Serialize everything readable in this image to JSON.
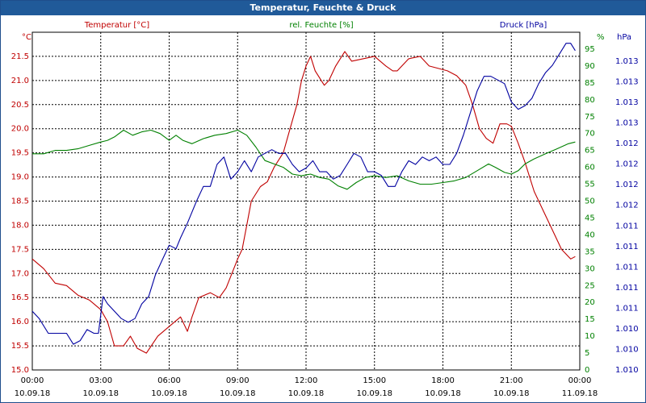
{
  "window": {
    "title": "Temperatur, Feuchte & Druck"
  },
  "chart_data": {
    "type": "line",
    "title": "Temperatur, Feuchte & Druck",
    "x_ticks": [
      {
        "time": "00:00",
        "date": "10.09.18"
      },
      {
        "time": "03:00",
        "date": "10.09.18"
      },
      {
        "time": "06:00",
        "date": "10.09.18"
      },
      {
        "time": "09:00",
        "date": "10.09.18"
      },
      {
        "time": "12:00",
        "date": "10.09.18"
      },
      {
        "time": "15:00",
        "date": "10.09.18"
      },
      {
        "time": "18:00",
        "date": "10.09.18"
      },
      {
        "time": "21:00",
        "date": "10.09.18"
      },
      {
        "time": "00:00",
        "date": "11.09.18"
      }
    ],
    "xlim": [
      0,
      24
    ],
    "axes": {
      "left": {
        "unit": "°C",
        "ylim": [
          15.0,
          22.0
        ],
        "ticks": [
          "15.0",
          "15.5",
          "16.0",
          "16.5",
          "17.0",
          "17.5",
          "18.0",
          "18.5",
          "19.0",
          "19.5",
          "20.0",
          "20.5",
          "21.0",
          "21.5"
        ]
      },
      "right1": {
        "unit": "%",
        "ylim": [
          0,
          100
        ],
        "ticks": [
          "0",
          "5",
          "10",
          "15",
          "20",
          "25",
          "30",
          "35",
          "40",
          "45",
          "50",
          "55",
          "60",
          "65",
          "70",
          "75",
          "80",
          "85",
          "90",
          "95"
        ]
      },
      "right2": {
        "unit": "hPa",
        "ylim": [
          1009.3,
          1013.9
        ],
        "ticks": [
          "1.010",
          "1.010",
          "1.010",
          "1.011",
          "1.011",
          "1.011",
          "1.011",
          "1.011",
          "1.012",
          "1.012",
          "1.012",
          "1.012",
          "1.013",
          "1.013",
          "1.013",
          "1.013"
        ]
      }
    },
    "legend": [
      "Temperatur [°C]",
      "rel. Feuchte [%]",
      "Druck [hPa]"
    ],
    "series": [
      {
        "name": "Temperatur [°C]",
        "axis": "left",
        "color": "#c00000",
        "points": [
          [
            0,
            17.3
          ],
          [
            0.5,
            17.1
          ],
          [
            1,
            16.8
          ],
          [
            1.5,
            16.75
          ],
          [
            2,
            16.55
          ],
          [
            2.5,
            16.45
          ],
          [
            3,
            16.25
          ],
          [
            3.3,
            16.0
          ],
          [
            3.6,
            15.5
          ],
          [
            4,
            15.5
          ],
          [
            4.3,
            15.7
          ],
          [
            4.6,
            15.45
          ],
          [
            5,
            15.35
          ],
          [
            5.5,
            15.7
          ],
          [
            6,
            15.9
          ],
          [
            6.5,
            16.1
          ],
          [
            6.8,
            15.8
          ],
          [
            7,
            16.1
          ],
          [
            7.3,
            16.5
          ],
          [
            7.8,
            16.6
          ],
          [
            8.2,
            16.5
          ],
          [
            8.5,
            16.7
          ],
          [
            9,
            17.3
          ],
          [
            9.2,
            17.5
          ],
          [
            9.4,
            18.0
          ],
          [
            9.6,
            18.5
          ],
          [
            10,
            18.8
          ],
          [
            10.3,
            18.9
          ],
          [
            10.6,
            19.2
          ],
          [
            11,
            19.5
          ],
          [
            11.3,
            20.0
          ],
          [
            11.6,
            20.5
          ],
          [
            11.8,
            21.0
          ],
          [
            12,
            21.3
          ],
          [
            12.2,
            21.5
          ],
          [
            12.4,
            21.2
          ],
          [
            12.8,
            20.9
          ],
          [
            13,
            21.0
          ],
          [
            13.3,
            21.3
          ],
          [
            13.7,
            21.6
          ],
          [
            14,
            21.4
          ],
          [
            14.5,
            21.45
          ],
          [
            15,
            21.5
          ],
          [
            15.5,
            21.3
          ],
          [
            15.8,
            21.2
          ],
          [
            16,
            21.2
          ],
          [
            16.5,
            21.45
          ],
          [
            17,
            21.5
          ],
          [
            17.4,
            21.3
          ],
          [
            17.8,
            21.25
          ],
          [
            18.2,
            21.2
          ],
          [
            18.6,
            21.1
          ],
          [
            19,
            20.9
          ],
          [
            19.3,
            20.5
          ],
          [
            19.6,
            20.0
          ],
          [
            19.9,
            19.8
          ],
          [
            20.2,
            19.7
          ],
          [
            20.5,
            20.1
          ],
          [
            20.8,
            20.1
          ],
          [
            21,
            20.05
          ],
          [
            21.3,
            19.7
          ],
          [
            21.6,
            19.3
          ],
          [
            22,
            18.7
          ],
          [
            22.4,
            18.3
          ],
          [
            22.8,
            17.9
          ],
          [
            23.2,
            17.5
          ],
          [
            23.6,
            17.3
          ],
          [
            23.8,
            17.35
          ]
        ]
      },
      {
        "name": "rel. Feuchte [%]",
        "axis": "right1",
        "color": "#008000",
        "points": [
          [
            0,
            64
          ],
          [
            0.5,
            64
          ],
          [
            1,
            65
          ],
          [
            1.5,
            65
          ],
          [
            2,
            65.5
          ],
          [
            2.5,
            66.5
          ],
          [
            3,
            67.5
          ],
          [
            3.3,
            68
          ],
          [
            3.6,
            69
          ],
          [
            4,
            71
          ],
          [
            4.4,
            69.5
          ],
          [
            4.8,
            70.5
          ],
          [
            5.2,
            71
          ],
          [
            5.6,
            70
          ],
          [
            6,
            68
          ],
          [
            6.3,
            69.5
          ],
          [
            6.6,
            68
          ],
          [
            7,
            67
          ],
          [
            7.5,
            68.5
          ],
          [
            8,
            69.5
          ],
          [
            8.5,
            70
          ],
          [
            9,
            71
          ],
          [
            9.4,
            69.5
          ],
          [
            9.8,
            66
          ],
          [
            10.2,
            62
          ],
          [
            10.6,
            61
          ],
          [
            11,
            60
          ],
          [
            11.4,
            58
          ],
          [
            11.8,
            57.5
          ],
          [
            12.2,
            58
          ],
          [
            12.6,
            57
          ],
          [
            13,
            56.5
          ],
          [
            13.4,
            54.5
          ],
          [
            13.8,
            53.5
          ],
          [
            14.2,
            55.5
          ],
          [
            14.6,
            57
          ],
          [
            15,
            57.5
          ],
          [
            15.5,
            57
          ],
          [
            16,
            57.5
          ],
          [
            16.5,
            56
          ],
          [
            17,
            55
          ],
          [
            17.5,
            55
          ],
          [
            18,
            55.5
          ],
          [
            18.5,
            56
          ],
          [
            19,
            57
          ],
          [
            19.5,
            59
          ],
          [
            20,
            61
          ],
          [
            20.3,
            60
          ],
          [
            20.7,
            58.5
          ],
          [
            21,
            58
          ],
          [
            21.3,
            59
          ],
          [
            21.6,
            61
          ],
          [
            22,
            62.5
          ],
          [
            22.5,
            64
          ],
          [
            23,
            65.5
          ],
          [
            23.5,
            67
          ],
          [
            23.8,
            67.5
          ]
        ]
      },
      {
        "name": "Druck [hPa]",
        "axis": "right2",
        "color": "#0000a0",
        "points": [
          [
            0,
            1010.1
          ],
          [
            0.3,
            1010.0
          ],
          [
            0.7,
            1009.8
          ],
          [
            1,
            1009.8
          ],
          [
            1.5,
            1009.8
          ],
          [
            1.8,
            1009.65
          ],
          [
            2.1,
            1009.7
          ],
          [
            2.4,
            1009.85
          ],
          [
            2.7,
            1009.8
          ],
          [
            2.9,
            1009.8
          ],
          [
            3.1,
            1010.3
          ],
          [
            3.3,
            1010.2
          ],
          [
            3.6,
            1010.1
          ],
          [
            3.9,
            1010.0
          ],
          [
            4.2,
            1009.95
          ],
          [
            4.5,
            1010.0
          ],
          [
            4.8,
            1010.2
          ],
          [
            5.1,
            1010.3
          ],
          [
            5.4,
            1010.6
          ],
          [
            5.7,
            1010.8
          ],
          [
            6,
            1011.0
          ],
          [
            6.3,
            1010.95
          ],
          [
            6.5,
            1011.1
          ],
          [
            6.8,
            1011.3
          ],
          [
            7.2,
            1011.6
          ],
          [
            7.5,
            1011.8
          ],
          [
            7.8,
            1011.8
          ],
          [
            8.1,
            1012.1
          ],
          [
            8.4,
            1012.2
          ],
          [
            8.7,
            1011.9
          ],
          [
            9,
            1012.0
          ],
          [
            9.3,
            1012.15
          ],
          [
            9.6,
            1012.0
          ],
          [
            9.9,
            1012.2
          ],
          [
            10.2,
            1012.25
          ],
          [
            10.5,
            1012.3
          ],
          [
            10.8,
            1012.25
          ],
          [
            11.1,
            1012.25
          ],
          [
            11.4,
            1012.1
          ],
          [
            11.7,
            1012.0
          ],
          [
            12,
            1012.05
          ],
          [
            12.3,
            1012.15
          ],
          [
            12.6,
            1012.0
          ],
          [
            12.9,
            1012.0
          ],
          [
            13.2,
            1011.9
          ],
          [
            13.5,
            1011.95
          ],
          [
            13.8,
            1012.1
          ],
          [
            14.1,
            1012.25
          ],
          [
            14.4,
            1012.2
          ],
          [
            14.7,
            1012.0
          ],
          [
            15,
            1012.0
          ],
          [
            15.3,
            1011.95
          ],
          [
            15.6,
            1011.8
          ],
          [
            15.9,
            1011.8
          ],
          [
            16.2,
            1012.0
          ],
          [
            16.5,
            1012.15
          ],
          [
            16.8,
            1012.1
          ],
          [
            17.1,
            1012.2
          ],
          [
            17.4,
            1012.15
          ],
          [
            17.7,
            1012.2
          ],
          [
            18,
            1012.1
          ],
          [
            18.3,
            1012.1
          ],
          [
            18.6,
            1012.25
          ],
          [
            18.9,
            1012.5
          ],
          [
            19.2,
            1012.8
          ],
          [
            19.5,
            1013.1
          ],
          [
            19.8,
            1013.3
          ],
          [
            20.1,
            1013.3
          ],
          [
            20.4,
            1013.25
          ],
          [
            20.7,
            1013.2
          ],
          [
            21,
            1012.95
          ],
          [
            21.3,
            1012.85
          ],
          [
            21.6,
            1012.9
          ],
          [
            21.9,
            1013.0
          ],
          [
            22.2,
            1013.2
          ],
          [
            22.5,
            1013.35
          ],
          [
            22.8,
            1013.45
          ],
          [
            23.1,
            1013.6
          ],
          [
            23.4,
            1013.75
          ],
          [
            23.6,
            1013.75
          ],
          [
            23.8,
            1013.65
          ]
        ]
      }
    ]
  }
}
